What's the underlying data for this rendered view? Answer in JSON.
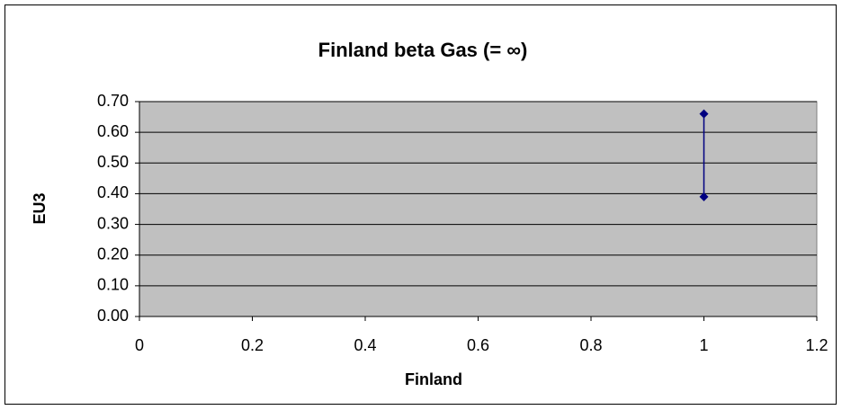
{
  "chart_data": {
    "type": "scatter",
    "title": "Finland beta Gas (= ∞)",
    "x_label": "Finland",
    "y_label": "EU3",
    "series": [
      {
        "color": "#000080",
        "x": [
          1,
          1
        ],
        "values": [
          0.39,
          0.66
        ]
      }
    ],
    "marker": "diamond",
    "connect": true,
    "xlim": [
      0,
      1.2
    ],
    "xticks": [
      0,
      0.2,
      0.4,
      0.6,
      0.8,
      1,
      1.2
    ],
    "ylim": [
      0,
      0.7
    ],
    "yticks": [
      {
        "value": 0,
        "label": "0.00"
      },
      {
        "value": 0.1,
        "label": "0.10"
      },
      {
        "value": 0.2,
        "label": "0.20"
      },
      {
        "value": 0.3,
        "label": "0.30"
      },
      {
        "value": 0.4,
        "label": "0.40"
      },
      {
        "value": 0.5,
        "label": "0.50"
      },
      {
        "value": 0.6,
        "label": "0.60"
      },
      {
        "value": 0.7,
        "label": "0.70"
      }
    ],
    "grid": true,
    "plot_background": "#c0c0c0"
  }
}
